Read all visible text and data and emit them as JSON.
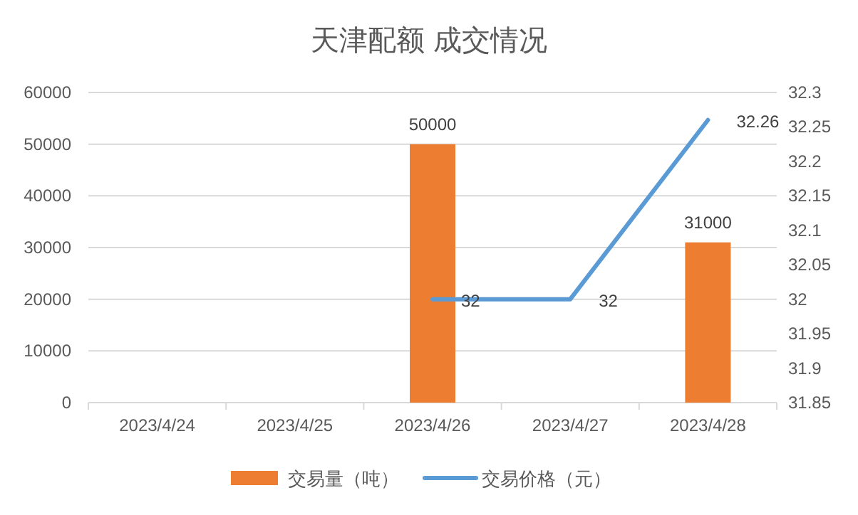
{
  "chart_data": {
    "type": "bar",
    "title": "天津配额 成交情况",
    "categories": [
      "2023/4/24",
      "2023/4/25",
      "2023/4/26",
      "2023/4/27",
      "2023/4/28"
    ],
    "series": [
      {
        "name": "交易量（吨）",
        "color": "#ed7d31",
        "values": [
          null,
          null,
          50000,
          null,
          31000
        ]
      },
      {
        "name": "交易价格（元）",
        "type": "line",
        "axis": "y2",
        "color": "#5b9bd5",
        "values": [
          null,
          null,
          32,
          32,
          32.26
        ]
      }
    ],
    "ylim": [
      0,
      60000
    ],
    "yticks": [
      0,
      10000,
      20000,
      30000,
      40000,
      50000,
      60000
    ],
    "y2lim": [
      31.85,
      32.3
    ],
    "y2ticks": [
      31.85,
      31.9,
      31.95,
      32,
      32.05,
      32.1,
      32.15,
      32.2,
      32.25,
      32.3
    ],
    "grid": "y",
    "legend": "bottom",
    "data_labels": true
  }
}
